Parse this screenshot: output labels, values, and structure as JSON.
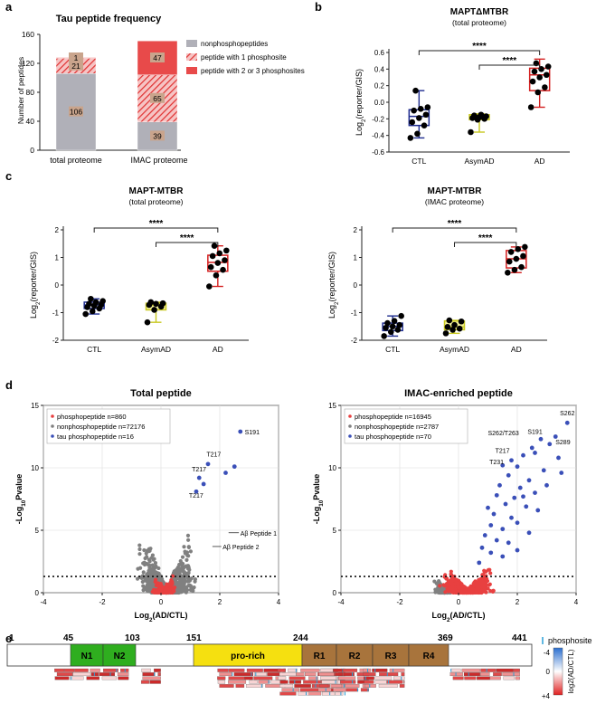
{
  "panel_labels": [
    "a",
    "b",
    "c",
    "d",
    "e"
  ],
  "colors": {
    "gray": "#b0b0b8",
    "red": "#e03030",
    "hatch_bg": "#f4c0c0",
    "ctl": "#1f2d8f",
    "asym": "#c8c820",
    "ad": "#d42020",
    "dot_gray": "#808080",
    "dot_red": "#e84040",
    "dot_blue": "#3a4fb8",
    "n_domain": "#2fae1f",
    "prorich": "#f5e010",
    "repeat": "#a8743c"
  },
  "chart_data": [
    {
      "id": "a",
      "type": "bar",
      "title": "Tau peptide frequency",
      "ylabel": "Number of peptides",
      "ylim": [
        0,
        160
      ],
      "yticks": [
        "0",
        "40",
        "80",
        "120",
        "160"
      ],
      "categories": [
        "total proteome",
        "IMAC proteome"
      ],
      "series": [
        {
          "name": "nonphosphopeptides",
          "values": [
            106,
            39
          ]
        },
        {
          "name": "peptide with 1 phosphosite",
          "values": [
            21,
            65
          ]
        },
        {
          "name": "peptide with 2 or 3 phosphosites",
          "values": [
            1,
            47
          ]
        }
      ],
      "labels": [
        [
          "106",
          "21",
          "1"
        ],
        [
          "39",
          "65",
          "47"
        ]
      ]
    },
    {
      "id": "b",
      "type": "box",
      "title": "MAPTΔMTBR",
      "subtitle": "(total proteome)",
      "ylabel_main": "Log",
      "ylabel_sub": "2",
      "ylabel_rest": "(reporter/GIS)",
      "ylim": [
        -0.6,
        0.6
      ],
      "yticks": [
        "-0.6",
        "-0.4",
        "-0.2",
        "0.0",
        "0.2",
        "0.4",
        "0.6"
      ],
      "categories": [
        "CTL",
        "AsymAD",
        "AD"
      ],
      "sig": [
        "****",
        "****"
      ],
      "groups": [
        {
          "q1": -0.28,
          "med": -0.17,
          "q3": -0.09,
          "min": -0.43,
          "max": 0.14,
          "points": [
            -0.43,
            -0.38,
            -0.28,
            -0.24,
            -0.19,
            -0.15,
            -0.1,
            -0.08,
            -0.06,
            0.14
          ]
        },
        {
          "q1": -0.21,
          "med": -0.18,
          "q3": -0.15,
          "min": -0.36,
          "max": -0.14,
          "points": [
            -0.36,
            -0.21,
            -0.2,
            -0.19,
            -0.18,
            -0.17,
            -0.16,
            -0.15
          ]
        },
        {
          "q1": 0.14,
          "med": 0.33,
          "q3": 0.41,
          "min": -0.06,
          "max": 0.52,
          "points": [
            -0.06,
            0.12,
            0.18,
            0.25,
            0.3,
            0.33,
            0.37,
            0.4,
            0.43,
            0.47
          ]
        }
      ]
    },
    {
      "id": "c1",
      "type": "box",
      "title": "MAPT-MTBR",
      "subtitle": "(total proteome)",
      "ylabel_main": "Log",
      "ylabel_sub": "2",
      "ylabel_rest": "(reporter/GIS)",
      "ylim": [
        -2,
        2
      ],
      "yticks": [
        "-2",
        "-1",
        "0",
        "1",
        "2"
      ],
      "categories": [
        "CTL",
        "AsymAD",
        "AD"
      ],
      "sig": [
        "****",
        "****"
      ],
      "groups": [
        {
          "q1": -0.85,
          "med": -0.72,
          "q3": -0.62,
          "min": -1.05,
          "max": -0.5,
          "points": [
            -1.05,
            -0.95,
            -0.85,
            -0.8,
            -0.75,
            -0.72,
            -0.68,
            -0.62,
            -0.58,
            -0.5
          ]
        },
        {
          "q1": -0.9,
          "med": -0.72,
          "q3": -0.66,
          "min": -1.35,
          "max": -0.62,
          "points": [
            -1.35,
            -0.9,
            -0.78,
            -0.72,
            -0.68,
            -0.66,
            -0.62
          ]
        },
        {
          "q1": 0.5,
          "med": 0.82,
          "q3": 1.08,
          "min": -0.05,
          "max": 1.42,
          "points": [
            -0.05,
            0.35,
            0.55,
            0.65,
            0.8,
            0.9,
            1.05,
            1.15,
            1.25,
            1.42
          ]
        }
      ]
    },
    {
      "id": "c2",
      "type": "box",
      "title": "MAPT-MTBR",
      "subtitle": "(IMAC proteome)",
      "ylabel_main": "Log",
      "ylabel_sub": "2",
      "ylabel_rest": "(reporter/GIS)",
      "ylim": [
        -2,
        2
      ],
      "yticks": [
        "-2",
        "-1",
        "0",
        "1",
        "2"
      ],
      "categories": [
        "CTL",
        "AsymAD",
        "AD"
      ],
      "sig": [
        "****",
        "****"
      ],
      "groups": [
        {
          "q1": -1.65,
          "med": -1.5,
          "q3": -1.38,
          "min": -1.85,
          "max": -1.12,
          "points": [
            -1.85,
            -1.7,
            -1.62,
            -1.55,
            -1.5,
            -1.45,
            -1.38,
            -1.3,
            -1.12
          ]
        },
        {
          "q1": -1.62,
          "med": -1.52,
          "q3": -1.3,
          "min": -1.75,
          "max": -1.28,
          "points": [
            -1.75,
            -1.62,
            -1.58,
            -1.52,
            -1.45,
            -1.32,
            -1.28
          ]
        },
        {
          "q1": 0.62,
          "med": 0.95,
          "q3": 1.25,
          "min": 0.45,
          "max": 1.38,
          "points": [
            0.45,
            0.55,
            0.65,
            0.85,
            0.95,
            1.05,
            1.2,
            1.3,
            1.38
          ]
        }
      ]
    },
    {
      "id": "d1",
      "type": "scatter",
      "title": "Total peptide",
      "xlabel_main": "Log",
      "xlabel_sub": "2",
      "xlabel_rest": "(AD/CTL)",
      "ylabel_pre": "-Log",
      "ylabel_sub": "10",
      "ylabel_rest": "Pvalue",
      "xlim": [
        -4,
        4
      ],
      "ylim": [
        0,
        15
      ],
      "xticks": [
        "-4",
        "-2",
        "0",
        "2",
        "4"
      ],
      "yticks": [
        "0",
        "5",
        "10",
        "15"
      ],
      "legend": [
        "phosphopeptide n=860",
        "nonphosphopeptide n=72176",
        "tau phosphopeptide n=16"
      ],
      "annotations": [
        "S191",
        "T217",
        "T217",
        "T217",
        "Aβ Peptide 1",
        "Aβ Peptide 2"
      ],
      "blue_points": [
        [
          2.7,
          12.9
        ],
        [
          1.6,
          10.3
        ],
        [
          1.3,
          9.2
        ],
        [
          1.45,
          8.7
        ],
        [
          1.2,
          8.1
        ],
        [
          2.2,
          9.6
        ],
        [
          2.5,
          10.1
        ]
      ]
    },
    {
      "id": "d2",
      "type": "scatter",
      "title": "IMAC-enriched peptide",
      "xlabel_main": "Log",
      "xlabel_sub": "2",
      "xlabel_rest": "(AD/CTL)",
      "ylabel_pre": "-Log",
      "ylabel_sub": "10",
      "ylabel_rest": "Pvalue",
      "xlim": [
        -4,
        4
      ],
      "ylim": [
        0,
        15
      ],
      "xticks": [
        "-4",
        "-2",
        "0",
        "2",
        "4"
      ],
      "yticks": [
        "0",
        "5",
        "10",
        "15"
      ],
      "legend": [
        "phosphopeptide n=16945",
        "nonphosphopeptide n=2787",
        "tau phosphopeptide n=70"
      ],
      "annotations": [
        "S262",
        "S262/T263",
        "S191",
        "S289",
        "T217",
        "T231"
      ],
      "blue_points": [
        [
          3.7,
          13.6
        ],
        [
          3.3,
          12.5
        ],
        [
          2.8,
          12.3
        ],
        [
          2.5,
          11.6
        ],
        [
          2.2,
          11.0
        ],
        [
          1.8,
          10.6
        ],
        [
          1.5,
          10.2
        ],
        [
          3.1,
          11.9
        ],
        [
          2.6,
          11.2
        ],
        [
          2.0,
          10.1
        ],
        [
          1.7,
          9.4
        ],
        [
          2.4,
          9.0
        ],
        [
          2.9,
          9.8
        ],
        [
          3.5,
          9.6
        ],
        [
          1.4,
          8.6
        ],
        [
          2.1,
          8.4
        ],
        [
          2.6,
          8.0
        ],
        [
          1.9,
          7.6
        ],
        [
          1.6,
          7.1
        ],
        [
          2.3,
          6.9
        ],
        [
          1.2,
          6.3
        ],
        [
          1.8,
          6.0
        ],
        [
          2.7,
          6.6
        ],
        [
          1.1,
          5.4
        ],
        [
          1.5,
          5.1
        ],
        [
          2.0,
          5.6
        ],
        [
          0.9,
          4.6
        ],
        [
          1.3,
          4.2
        ],
        [
          1.7,
          4.0
        ],
        [
          2.4,
          4.8
        ],
        [
          0.8,
          3.6
        ],
        [
          1.1,
          3.2
        ],
        [
          1.5,
          2.9
        ],
        [
          2.0,
          3.4
        ],
        [
          0.7,
          2.4
        ],
        [
          3.0,
          8.6
        ],
        [
          3.4,
          10.8
        ],
        [
          2.2,
          7.7
        ],
        [
          1.3,
          7.8
        ],
        [
          1.0,
          6.8
        ]
      ]
    },
    {
      "id": "e",
      "type": "domain-map",
      "positions": [
        "1",
        "45",
        "103",
        "151",
        "244",
        "369",
        "441"
      ],
      "domains": [
        "N1",
        "N2",
        "pro-rich",
        "R1",
        "R2",
        "R3",
        "R4"
      ],
      "legend_title": "phosphosite",
      "colorbar_ticks": [
        "-4",
        "0",
        "+4"
      ],
      "colorbar_label": "log2(AD/CTL)"
    }
  ]
}
